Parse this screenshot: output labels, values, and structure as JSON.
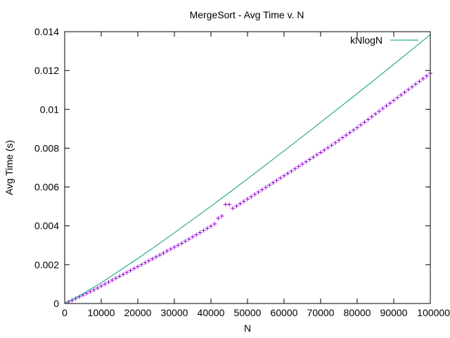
{
  "chart_data": {
    "type": "line",
    "title": "MergeSort - Avg Time v. N",
    "xlabel": "N",
    "ylabel": "Avg Time (s)",
    "xlim": [
      0,
      100000
    ],
    "ylim": [
      0,
      0.014
    ],
    "x_ticks": [
      0,
      10000,
      20000,
      30000,
      40000,
      50000,
      60000,
      70000,
      80000,
      90000,
      100000
    ],
    "x_tick_labels": [
      "0",
      "10000",
      "20000",
      "30000",
      "40000",
      "50000",
      "60000",
      "70000",
      "80000",
      "90000",
      "100000"
    ],
    "y_ticks": [
      0,
      0.002,
      0.004,
      0.006,
      0.008,
      0.01,
      0.012,
      0.014
    ],
    "y_tick_labels": [
      "0",
      "0.002",
      "0.004",
      "0.006",
      "0.008",
      "0.01",
      "0.012",
      "0.014"
    ],
    "grid": false,
    "legend_position": "top-right",
    "series": [
      {
        "style": "points",
        "marker": "plus",
        "color": "#9400d3",
        "x": [
          1000,
          2000,
          3000,
          4000,
          5000,
          6000,
          7000,
          8000,
          9000,
          10000,
          11000,
          12000,
          13000,
          14000,
          15000,
          16000,
          17000,
          18000,
          19000,
          20000,
          21000,
          22000,
          23000,
          24000,
          25000,
          26000,
          27000,
          28000,
          29000,
          30000,
          31000,
          32000,
          33000,
          34000,
          35000,
          36000,
          37000,
          38000,
          39000,
          40000,
          41000,
          42000,
          43000,
          44000,
          45000,
          46000,
          47000,
          48000,
          49000,
          50000,
          51000,
          52000,
          53000,
          54000,
          55000,
          56000,
          57000,
          58000,
          59000,
          60000,
          61000,
          62000,
          63000,
          64000,
          65000,
          66000,
          67000,
          68000,
          69000,
          70000,
          71000,
          72000,
          73000,
          74000,
          75000,
          76000,
          77000,
          78000,
          79000,
          80000,
          81000,
          82000,
          83000,
          84000,
          85000,
          86000,
          87000,
          88000,
          89000,
          90000,
          91000,
          92000,
          93000,
          94000,
          95000,
          96000,
          97000,
          98000,
          99000,
          100000
        ],
        "y": [
          8e-05,
          0.00016,
          0.00025,
          0.00034,
          0.00043,
          0.00052,
          0.00061,
          0.0007,
          0.0008,
          0.0009,
          0.001,
          0.0011,
          0.0012,
          0.0013,
          0.0014,
          0.0015,
          0.0016,
          0.0017,
          0.0018,
          0.0019,
          0.002,
          0.0021,
          0.0022,
          0.0023,
          0.0024,
          0.0025,
          0.0026,
          0.0027,
          0.0028,
          0.0029,
          0.003,
          0.0031,
          0.00321,
          0.00332,
          0.00343,
          0.00354,
          0.00365,
          0.00376,
          0.00387,
          0.00398,
          0.0041,
          0.00439,
          0.0045,
          0.0051,
          0.0051,
          0.0049,
          0.00502,
          0.00514,
          0.00526,
          0.00538,
          0.0055,
          0.00562,
          0.00574,
          0.00586,
          0.00598,
          0.0061,
          0.00622,
          0.00634,
          0.00646,
          0.00658,
          0.0067,
          0.00682,
          0.00694,
          0.00706,
          0.00718,
          0.0073,
          0.00742,
          0.00754,
          0.00766,
          0.00778,
          0.0079,
          0.00802,
          0.00815,
          0.00828,
          0.00841,
          0.00854,
          0.00867,
          0.0088,
          0.00893,
          0.00906,
          0.0092,
          0.00934,
          0.00948,
          0.00962,
          0.00976,
          0.0099,
          0.01004,
          0.01018,
          0.01032,
          0.01046,
          0.0106,
          0.01074,
          0.01088,
          0.01102,
          0.01116,
          0.0113,
          0.01144,
          0.01158,
          0.01172,
          0.01186
        ]
      },
      {
        "name": "kNlogN",
        "style": "line",
        "color": "#009e73",
        "x": [
          0,
          5000,
          10000,
          15000,
          20000,
          25000,
          30000,
          35000,
          40000,
          45000,
          50000,
          55000,
          60000,
          65000,
          70000,
          75000,
          80000,
          85000,
          90000,
          95000,
          100000
        ],
        "y": [
          0,
          0.000498,
          0.00107,
          0.00169,
          0.00232,
          0.00297,
          0.00364,
          0.00432,
          0.00501,
          0.00571,
          0.00642,
          0.00714,
          0.00786,
          0.00859,
          0.00933,
          0.01007,
          0.01081,
          0.01156,
          0.01232,
          0.01308,
          0.01385
        ]
      }
    ]
  }
}
